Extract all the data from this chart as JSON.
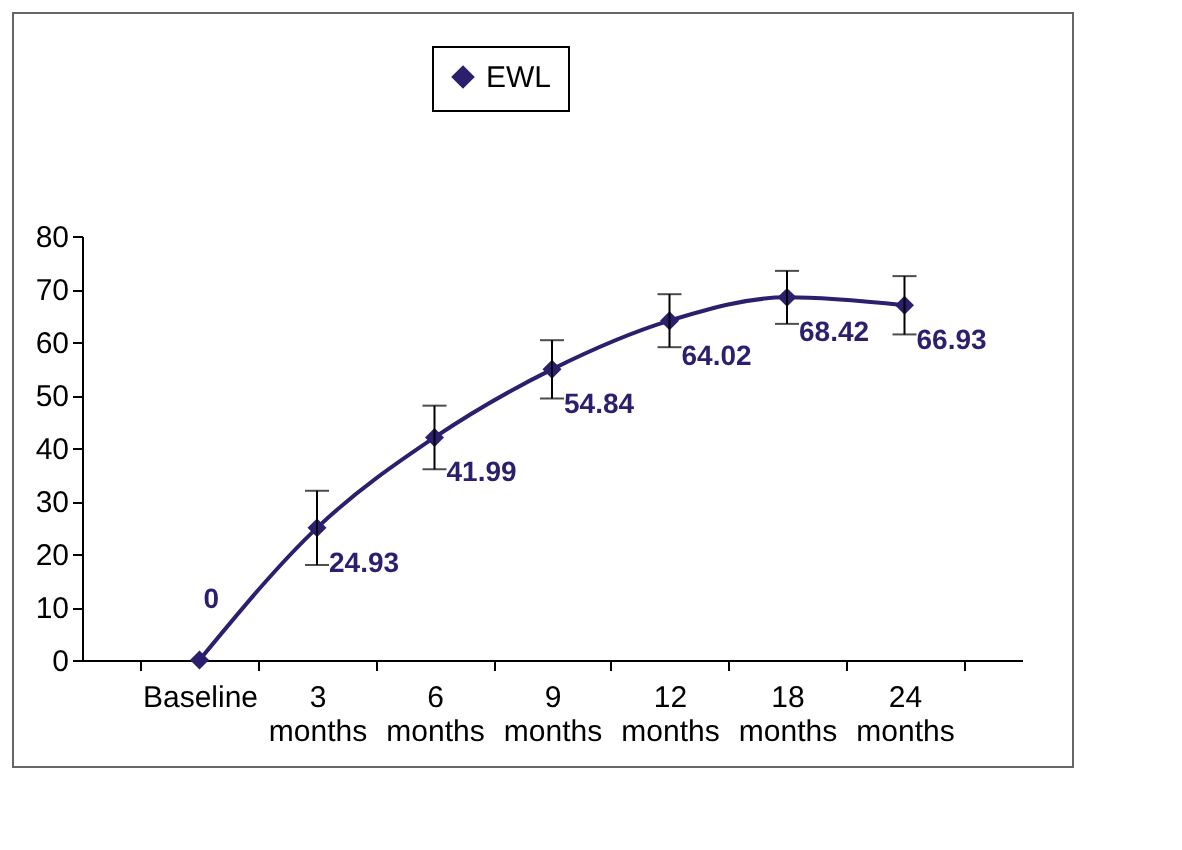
{
  "chart_data": {
    "type": "line",
    "categories": [
      "Baseline",
      "3 months",
      "6 months",
      "9 months",
      "12 months",
      "18 months",
      "24 months"
    ],
    "series": [
      {
        "name": "EWL",
        "color": "#2b1f6e",
        "values": [
          0,
          24.93,
          41.99,
          54.84,
          64.02,
          68.42,
          66.93
        ],
        "errors": [
          null,
          7,
          6,
          5.5,
          5,
          5,
          5.5
        ]
      }
    ],
    "ylim": [
      0,
      80
    ],
    "yticks": [
      0,
      10,
      20,
      30,
      40,
      50,
      60,
      70,
      80
    ],
    "data_labels": true,
    "legend": "top",
    "marker": "diamond",
    "grid": false
  }
}
